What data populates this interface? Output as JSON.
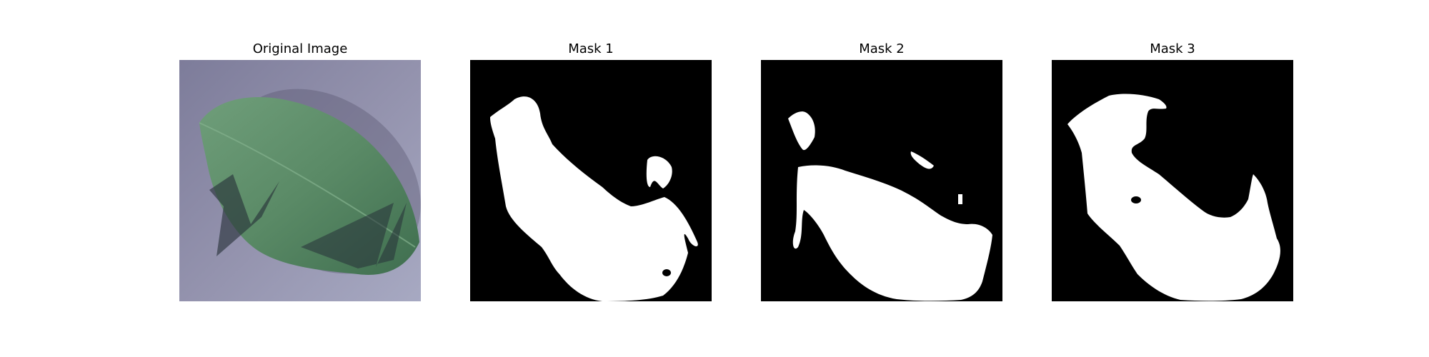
{
  "figure": {
    "panels": [
      {
        "title": "Original Image",
        "kind": "photo"
      },
      {
        "title": "Mask 1",
        "kind": "mask"
      },
      {
        "title": "Mask 2",
        "kind": "mask"
      },
      {
        "title": "Mask 3",
        "kind": "mask"
      }
    ]
  },
  "colors": {
    "mask_background": "#000000",
    "mask_foreground": "#ffffff",
    "photo_background": "#8f8ea8",
    "leaf": "#5a8a66",
    "overlay_triangles": "#263038"
  }
}
